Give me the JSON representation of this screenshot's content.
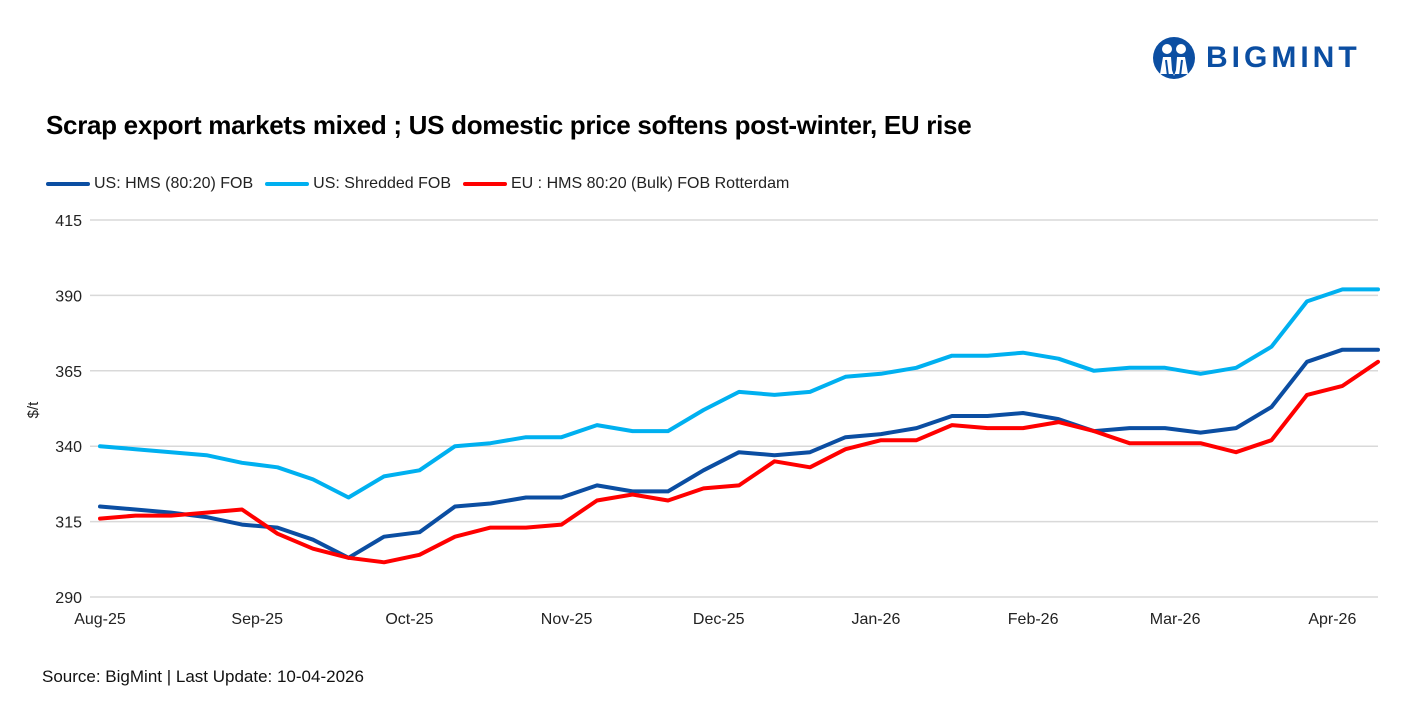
{
  "logo": {
    "text": "BIGMINT",
    "color": "#0B4EA2"
  },
  "source": "Source: BigMint | Last Update: 10-04-2026",
  "chart_data": {
    "type": "line",
    "title": "Scrap export markets mixed ; US domestic price softens post-winter, EU rise",
    "ylabel": "$/t",
    "xlabel": "",
    "ylim": [
      290,
      415
    ],
    "yticks": [
      290,
      315,
      340,
      365,
      390,
      415
    ],
    "xticks": [
      {
        "label": "Aug-25",
        "date": "2025-08-01"
      },
      {
        "label": "Sep-25",
        "date": "2025-09-01"
      },
      {
        "label": "Oct-25",
        "date": "2025-10-01"
      },
      {
        "label": "Nov-25",
        "date": "2025-11-01"
      },
      {
        "label": "Dec-25",
        "date": "2025-12-01"
      },
      {
        "label": "Jan-26",
        "date": "2026-01-01"
      },
      {
        "label": "Feb-26",
        "date": "2026-02-01"
      },
      {
        "label": "Mar-26",
        "date": "2026-03-01"
      },
      {
        "label": "Apr-26",
        "date": "2026-04-01"
      }
    ],
    "grid": "horizontal",
    "legend_position": "top-left",
    "x": [
      "2025-08-01",
      "2025-08-08",
      "2025-08-15",
      "2025-08-22",
      "2025-08-29",
      "2025-09-05",
      "2025-09-12",
      "2025-09-19",
      "2025-09-26",
      "2025-10-03",
      "2025-10-10",
      "2025-10-17",
      "2025-10-24",
      "2025-10-31",
      "2025-11-07",
      "2025-11-14",
      "2025-11-21",
      "2025-11-28",
      "2025-12-05",
      "2025-12-12",
      "2025-12-19",
      "2025-12-26",
      "2026-01-02",
      "2026-01-09",
      "2026-01-16",
      "2026-01-23",
      "2026-01-30",
      "2026-02-06",
      "2026-02-13",
      "2026-02-20",
      "2026-02-27",
      "2026-03-06",
      "2026-03-13",
      "2026-03-20",
      "2026-03-27",
      "2026-04-03",
      "2026-04-10"
    ],
    "series": [
      {
        "name": "US: HMS (80:20) FOB",
        "color": "#0B4EA2",
        "values": [
          320,
          319,
          318,
          316.5,
          314,
          313,
          309,
          303,
          310,
          311.5,
          320,
          321,
          323,
          323,
          327,
          325,
          325,
          332,
          338,
          337,
          338,
          343,
          344,
          346,
          350,
          350,
          351,
          349,
          345,
          346,
          346,
          344.5,
          346,
          353,
          368,
          372,
          372
        ]
      },
      {
        "name": "US: Shredded FOB",
        "color": "#00B0F0",
        "values": [
          340,
          339,
          338,
          337,
          334.5,
          333,
          329,
          323,
          330,
          332,
          340,
          341,
          343,
          343,
          347,
          345,
          345,
          352,
          358,
          357,
          358,
          363,
          364,
          366,
          370,
          370,
          371,
          369,
          365,
          366,
          366,
          364,
          366,
          373,
          388,
          392,
          392
        ]
      },
      {
        "name": "EU : HMS 80:20 (Bulk) FOB Rotterdam",
        "color": "#FF0000",
        "values": [
          316,
          317,
          317,
          318,
          319,
          311,
          306,
          303,
          301.5,
          304,
          310,
          313,
          313,
          314,
          322,
          324,
          322,
          326,
          327,
          335,
          333,
          339,
          342,
          342,
          347,
          346,
          346,
          348,
          345,
          341,
          341,
          341,
          338,
          342,
          357,
          360,
          368
        ]
      }
    ]
  }
}
